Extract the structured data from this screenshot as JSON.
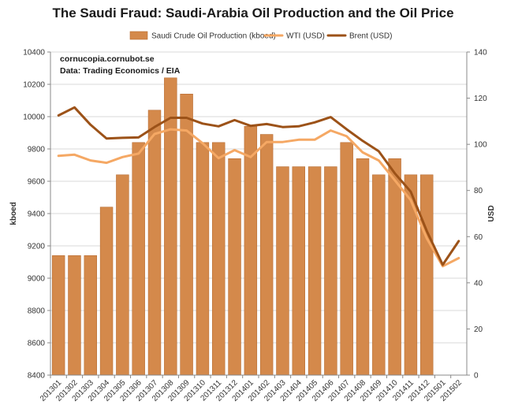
{
  "chart_data": {
    "type": "bar",
    "title": "The Saudi Fraud: Saudi-Arabia Oil Production and the Oil Price",
    "annotations": [
      "cornucopia.cornubot.se",
      "Data: Trading Economics / EIA"
    ],
    "categories": [
      "201301",
      "201302",
      "201303",
      "201304",
      "201305",
      "201306",
      "201307",
      "201308",
      "201309",
      "201310",
      "201311",
      "201312",
      "201401",
      "201402",
      "201403",
      "201404",
      "201405",
      "201406",
      "201407",
      "201408",
      "201409",
      "201410",
      "201411",
      "201412",
      "201501",
      "201502"
    ],
    "ylabel": "kboed",
    "y2label": "USD",
    "ylim": [
      8400,
      10400
    ],
    "y2lim": [
      0,
      140
    ],
    "yticks": [
      8400,
      8600,
      8800,
      9000,
      9200,
      9400,
      9600,
      9800,
      10000,
      10200,
      10400
    ],
    "y2ticks": [
      0,
      20,
      40,
      60,
      80,
      100,
      120,
      140
    ],
    "legend_position": "top",
    "colors": {
      "bar": "#d4894b",
      "bar_edge": "#b86e34",
      "wti": "#f5a864",
      "brent": "#9c5218",
      "grid": "#d9d9d9",
      "axis": "#888888"
    },
    "series": [
      {
        "name": "Saudi Crude Oil Production (kboed)",
        "type": "bar",
        "axis": "left",
        "values": [
          9140,
          9140,
          9140,
          9440,
          9640,
          9840,
          10040,
          10240,
          10140,
          9840,
          9840,
          9740,
          9940,
          9890,
          9690,
          9690,
          9690,
          9690,
          9840,
          9740,
          9640,
          9740,
          9640,
          9640,
          null,
          null
        ]
      },
      {
        "name": "WTI (USD)",
        "type": "line",
        "axis": "right",
        "values": [
          95,
          95.5,
          93,
          92,
          94.5,
          96,
          104.5,
          106.5,
          106,
          100.5,
          94,
          97.5,
          94.5,
          101,
          101,
          102,
          102,
          106,
          103.5,
          96.5,
          93,
          84.5,
          75.8,
          59.3,
          47.2,
          50.7
        ]
      },
      {
        "name": "Brent (USD)",
        "type": "line",
        "axis": "right",
        "values": [
          112.5,
          116,
          108.5,
          102.5,
          102.8,
          103,
          107.5,
          111.5,
          111.5,
          109,
          107.8,
          110.5,
          108,
          108.8,
          107.5,
          107.8,
          109.5,
          111.8,
          106.5,
          101.5,
          97,
          87.5,
          79.5,
          62.5,
          47.8,
          58.1
        ]
      }
    ]
  }
}
